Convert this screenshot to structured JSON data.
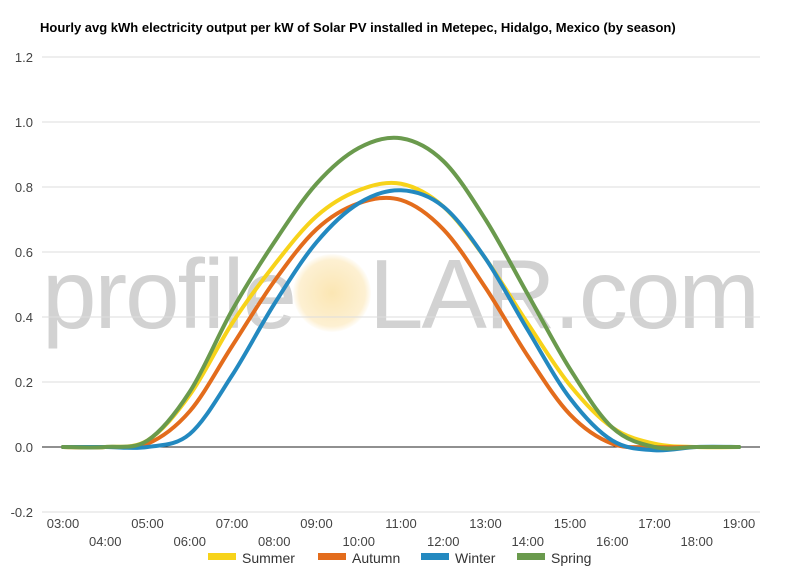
{
  "watermark": {
    "left": "profile",
    "right": "LAR.com"
  },
  "chart_data": {
    "type": "line",
    "title": "Hourly avg kWh electricity output per kW of Solar PV installed in Metepec, Hidalgo, Mexico (by season)",
    "xlabel": "",
    "ylabel": "",
    "x": [
      "03:00",
      "04:00",
      "05:00",
      "06:00",
      "07:00",
      "08:00",
      "09:00",
      "10:00",
      "11:00",
      "12:00",
      "13:00",
      "14:00",
      "15:00",
      "16:00",
      "17:00",
      "18:00",
      "19:00"
    ],
    "ylim": [
      -0.2,
      1.2
    ],
    "yticks": [
      -0.2,
      0.0,
      0.2,
      0.4,
      0.6,
      0.8,
      1.0,
      1.2
    ],
    "ytick_labels": [
      "-0.2",
      "0.0",
      "0.2",
      "0.4",
      "0.6",
      "0.8",
      "1.0",
      "1.2"
    ],
    "grid": true,
    "legend": "bottom",
    "series": [
      {
        "name": "Summer",
        "color": "#f7d31a",
        "values": [
          0,
          0,
          0.02,
          0.16,
          0.38,
          0.56,
          0.71,
          0.79,
          0.81,
          0.74,
          0.58,
          0.38,
          0.19,
          0.06,
          0.01,
          0,
          0
        ]
      },
      {
        "name": "Autumn",
        "color": "#e36c1c",
        "values": [
          0,
          0,
          0.01,
          0.11,
          0.31,
          0.51,
          0.67,
          0.75,
          0.76,
          0.67,
          0.49,
          0.28,
          0.1,
          0.01,
          0,
          0,
          0
        ]
      },
      {
        "name": "Winter",
        "color": "#2389c0",
        "values": [
          0,
          0,
          0,
          0.04,
          0.22,
          0.44,
          0.63,
          0.75,
          0.79,
          0.74,
          0.58,
          0.36,
          0.15,
          0.02,
          -0.01,
          0,
          0
        ]
      },
      {
        "name": "Spring",
        "color": "#6a9a4d",
        "values": [
          0,
          0,
          0.02,
          0.17,
          0.42,
          0.63,
          0.81,
          0.92,
          0.95,
          0.88,
          0.7,
          0.47,
          0.24,
          0.06,
          0,
          0,
          0
        ]
      }
    ]
  }
}
